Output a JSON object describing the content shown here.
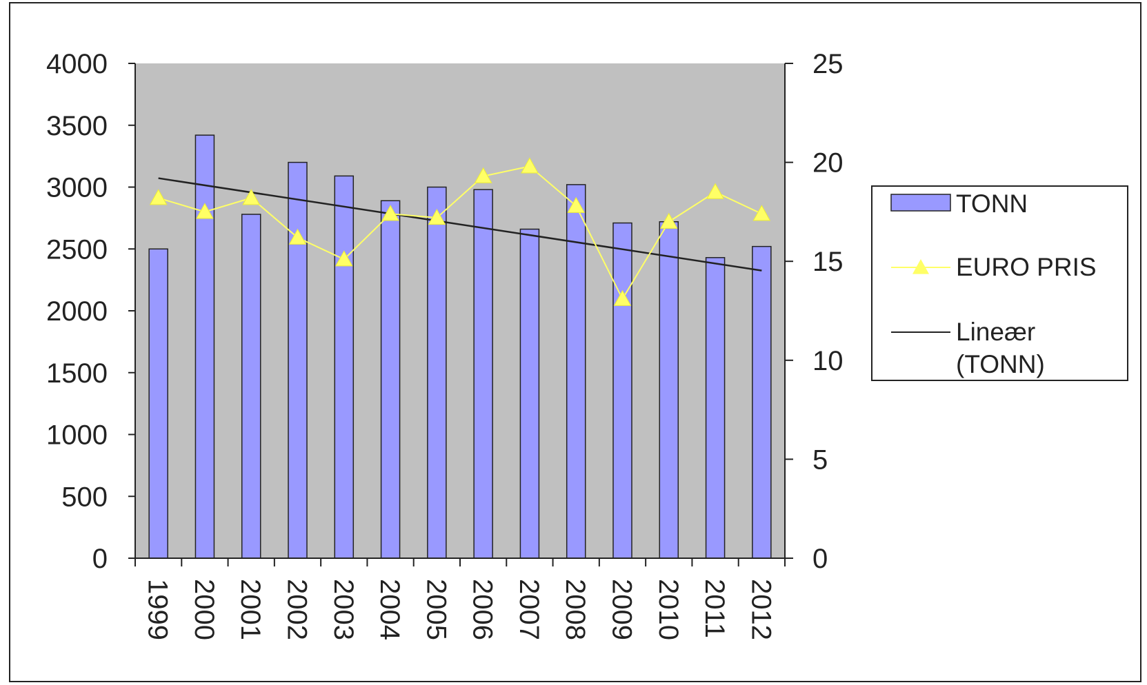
{
  "chart_data": {
    "type": "bar",
    "categories": [
      "1999",
      "2000",
      "2001",
      "2002",
      "2003",
      "2004",
      "2005",
      "2006",
      "2007",
      "2008",
      "2009",
      "2010",
      "2011",
      "2012"
    ],
    "series": [
      {
        "name": "TONN",
        "type": "bar",
        "axis": "left",
        "color": "#9999ff",
        "values": [
          2500,
          3420,
          2780,
          3200,
          3090,
          2890,
          3000,
          2980,
          2660,
          3020,
          2710,
          2720,
          2430,
          2520
        ]
      },
      {
        "name": "EURO PRIS",
        "type": "line",
        "axis": "right",
        "color": "#ffff66",
        "marker": "triangle",
        "values": [
          18.2,
          17.5,
          18.2,
          16.2,
          15.1,
          17.4,
          17.2,
          19.3,
          19.8,
          17.8,
          13.1,
          17.0,
          18.5,
          17.4
        ]
      },
      {
        "name": "Lineær\n(TONN)",
        "legend_lines": [
          "Lineær",
          "(TONN)"
        ],
        "type": "trendline",
        "axis": "left",
        "color": "#222222",
        "values": [
          3072,
          3015,
          2957,
          2900,
          2842,
          2785,
          2727,
          2670,
          2612,
          2555,
          2497,
          2440,
          2382,
          2325
        ]
      }
    ],
    "y_left": {
      "min": 0,
      "max": 4000,
      "step": 500,
      "tick_labels": [
        "0",
        "500",
        "1000",
        "1500",
        "2000",
        "2500",
        "3000",
        "3500",
        "4000"
      ]
    },
    "y_right": {
      "min": 0,
      "max": 25,
      "step": 5,
      "tick_labels": [
        "0",
        "5",
        "10",
        "15",
        "20",
        "25"
      ]
    },
    "x_tick_rotation": "vertical",
    "plot_background": "#c0c0c0",
    "grid": false,
    "legend_position": "right",
    "title": "",
    "xlabel": "",
    "ylabel": ""
  }
}
